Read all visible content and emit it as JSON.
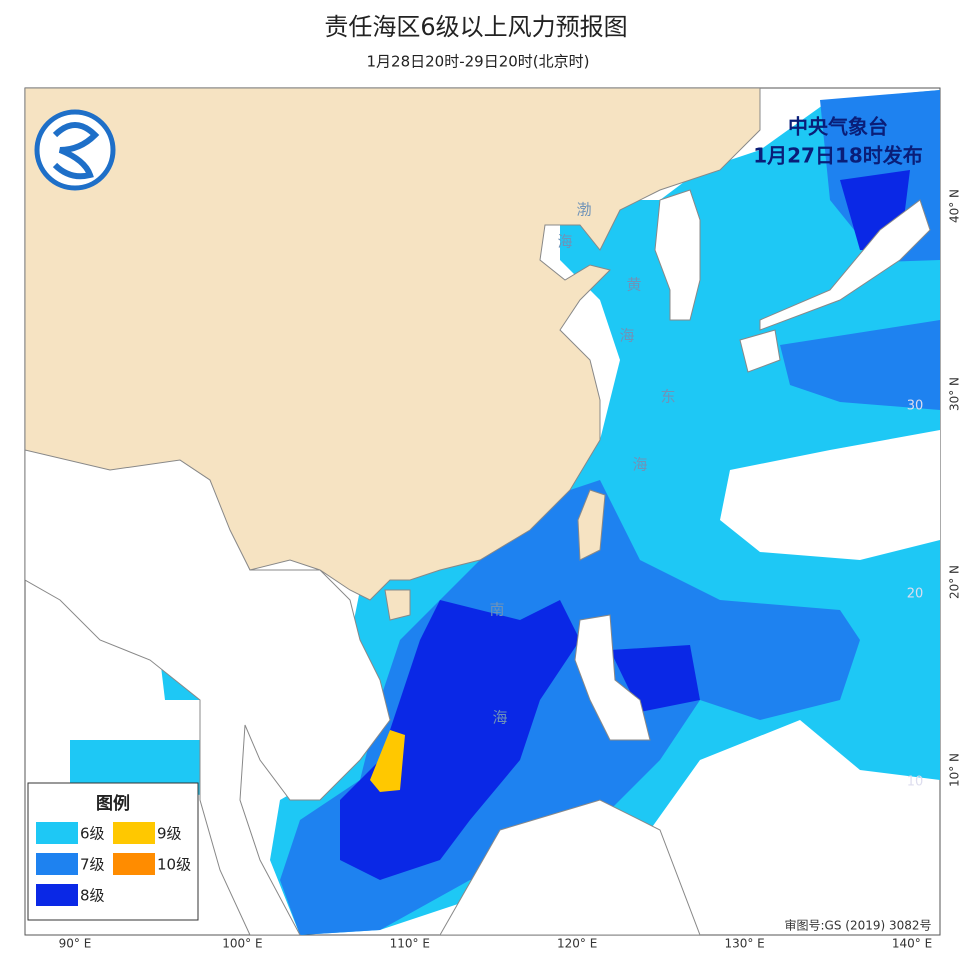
{
  "title": "责任海区6级以上风力预报图",
  "subtitle": "1月28日20时-29日20时(北京时)",
  "issuer": {
    "agency": "中央气象台",
    "issued": "1月27日18时发布"
  },
  "legend": {
    "title": "图例",
    "items": [
      {
        "label": "6级",
        "color": "#1ec8f5"
      },
      {
        "label": "7级",
        "color": "#1e82f0"
      },
      {
        "label": "8级",
        "color": "#0a28e6"
      },
      {
        "label": "9级",
        "color": "#ffc800"
      },
      {
        "label": "10级",
        "color": "#ff8c00"
      }
    ]
  },
  "sea_labels": {
    "bohai": [
      "渤",
      "海"
    ],
    "yellow_sea": [
      "黄",
      "海"
    ],
    "east_sea": [
      "东",
      "海"
    ],
    "south_sea": [
      "南",
      "海"
    ]
  },
  "lon_labels": [
    {
      "value": 90,
      "label": "90° E"
    },
    {
      "value": 100,
      "label": "100° E"
    },
    {
      "value": 110,
      "label": "110° E"
    },
    {
      "value": 120,
      "label": "120° E"
    },
    {
      "value": 130,
      "label": "130° E"
    },
    {
      "value": 140,
      "label": "140° E"
    }
  ],
  "lat_labels": [
    {
      "value": 40,
      "label": "40° N"
    },
    {
      "value": 30,
      "label": "30° N"
    },
    {
      "value": 20,
      "label": "20° N"
    },
    {
      "value": 10,
      "label": "10° N"
    }
  ],
  "inner_lat_labels": [
    30,
    20,
    10
  ],
  "approval": "审图号:GS (2019) 3082号"
}
